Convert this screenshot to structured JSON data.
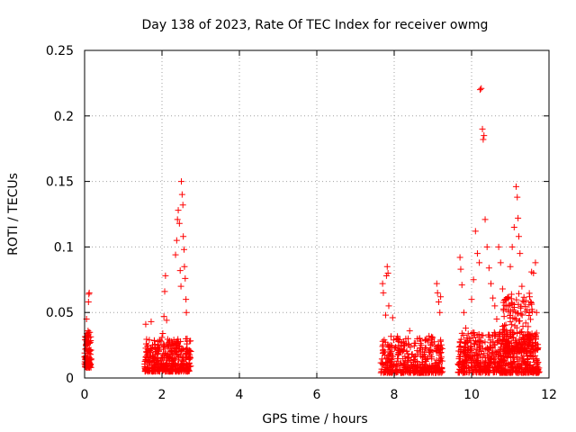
{
  "chart_data": {
    "type": "scatter",
    "title": "Day 138 of 2023, Rate Of TEC Index for receiver owmg",
    "xlabel": "GPS time / hours",
    "ylabel": "ROTI / TECUs",
    "xlim": [
      0,
      12
    ],
    "ylim": [
      0,
      0.25
    ],
    "x_ticks": [
      "0",
      "2",
      "4",
      "6",
      "8",
      "10",
      "12"
    ],
    "y_ticks": [
      "0",
      "0.05",
      "0.1",
      "0.15",
      "0.2",
      "0.25"
    ],
    "grid": true,
    "marker": "plus",
    "color": "#ff0000",
    "series": [
      {
        "points": [
          [
            0.0,
            0.016
          ],
          [
            0.02,
            0.022
          ],
          [
            0.03,
            0.031
          ],
          [
            0.04,
            0.012
          ],
          [
            0.05,
            0.045
          ],
          [
            0.06,
            0.027
          ],
          [
            0.07,
            0.01
          ],
          [
            0.08,
            0.019
          ],
          [
            0.09,
            0.036
          ],
          [
            0.1,
            0.058
          ],
          [
            0.11,
            0.064
          ],
          [
            0.12,
            0.065
          ],
          [
            0.13,
            0.014
          ],
          [
            0.14,
            0.021
          ],
          [
            1.58,
            0.041
          ],
          [
            1.62,
            0.012
          ],
          [
            1.68,
            0.008
          ],
          [
            1.72,
            0.043
          ],
          [
            1.78,
            0.015
          ],
          [
            1.82,
            0.01
          ],
          [
            1.88,
            0.018
          ],
          [
            1.92,
            0.022
          ],
          [
            1.96,
            0.013
          ],
          [
            2.0,
            0.031
          ],
          [
            2.02,
            0.034
          ],
          [
            2.05,
            0.047
          ],
          [
            2.07,
            0.066
          ],
          [
            2.09,
            0.078
          ],
          [
            2.12,
            0.044
          ],
          [
            2.15,
            0.024
          ],
          [
            2.2,
            0.016
          ],
          [
            2.25,
            0.028
          ],
          [
            2.3,
            0.019
          ],
          [
            2.35,
            0.094
          ],
          [
            2.38,
            0.105
          ],
          [
            2.4,
            0.121
          ],
          [
            2.42,
            0.128
          ],
          [
            2.45,
            0.118
          ],
          [
            2.47,
            0.082
          ],
          [
            2.49,
            0.07
          ],
          [
            2.5,
            0.15
          ],
          [
            2.52,
            0.14
          ],
          [
            2.54,
            0.132
          ],
          [
            2.55,
            0.108
          ],
          [
            2.57,
            0.098
          ],
          [
            2.58,
            0.085
          ],
          [
            2.6,
            0.076
          ],
          [
            2.62,
            0.06
          ],
          [
            2.63,
            0.05
          ],
          [
            2.65,
            0.03
          ],
          [
            2.68,
            0.018
          ],
          [
            2.7,
            0.014
          ],
          [
            7.7,
            0.072
          ],
          [
            7.72,
            0.065
          ],
          [
            7.74,
            0.01
          ],
          [
            7.76,
            0.02
          ],
          [
            7.78,
            0.048
          ],
          [
            7.8,
            0.078
          ],
          [
            7.82,
            0.085
          ],
          [
            7.84,
            0.08
          ],
          [
            7.86,
            0.055
          ],
          [
            7.88,
            0.012
          ],
          [
            7.92,
            0.015
          ],
          [
            7.96,
            0.046
          ],
          [
            8.0,
            0.01
          ],
          [
            8.1,
            0.018
          ],
          [
            8.2,
            0.022
          ],
          [
            8.3,
            0.03
          ],
          [
            8.4,
            0.036
          ],
          [
            8.5,
            0.012
          ],
          [
            8.6,
            0.018
          ],
          [
            8.7,
            0.025
          ],
          [
            8.8,
            0.014
          ],
          [
            8.9,
            0.032
          ],
          [
            9.0,
            0.02
          ],
          [
            9.05,
            0.024
          ],
          [
            9.1,
            0.072
          ],
          [
            9.12,
            0.065
          ],
          [
            9.15,
            0.058
          ],
          [
            9.18,
            0.05
          ],
          [
            9.2,
            0.062
          ],
          [
            9.22,
            0.016
          ],
          [
            9.7,
            0.092
          ],
          [
            9.72,
            0.083
          ],
          [
            9.75,
            0.071
          ],
          [
            9.8,
            0.05
          ],
          [
            9.85,
            0.038
          ],
          [
            9.9,
            0.021
          ],
          [
            9.95,
            0.015
          ],
          [
            10.0,
            0.06
          ],
          [
            10.05,
            0.075
          ],
          [
            10.1,
            0.112
          ],
          [
            10.15,
            0.095
          ],
          [
            10.2,
            0.088
          ],
          [
            10.22,
            0.22
          ],
          [
            10.25,
            0.221
          ],
          [
            10.28,
            0.19
          ],
          [
            10.3,
            0.182
          ],
          [
            10.32,
            0.185
          ],
          [
            10.35,
            0.121
          ],
          [
            10.4,
            0.1
          ],
          [
            10.45,
            0.084
          ],
          [
            10.5,
            0.072
          ],
          [
            10.55,
            0.061
          ],
          [
            10.6,
            0.055
          ],
          [
            10.65,
            0.045
          ],
          [
            10.7,
            0.1
          ],
          [
            10.75,
            0.088
          ],
          [
            10.8,
            0.068
          ],
          [
            10.85,
            0.04
          ],
          [
            10.9,
            0.03
          ],
          [
            10.95,
            0.052
          ],
          [
            11.0,
            0.085
          ],
          [
            11.05,
            0.1
          ],
          [
            11.1,
            0.115
          ],
          [
            11.15,
            0.146
          ],
          [
            11.18,
            0.138
          ],
          [
            11.2,
            0.122
          ],
          [
            11.22,
            0.108
          ],
          [
            11.25,
            0.095
          ],
          [
            11.3,
            0.07
          ],
          [
            11.35,
            0.058
          ],
          [
            11.4,
            0.042
          ],
          [
            11.45,
            0.035
          ],
          [
            11.5,
            0.062
          ],
          [
            11.55,
            0.081
          ],
          [
            11.6,
            0.08
          ],
          [
            11.65,
            0.088
          ],
          [
            11.68,
            0.05
          ]
        ]
      }
    ],
    "dense_bands": [
      {
        "x": [
          0.0,
          0.17
        ],
        "y": [
          0.008,
          0.035
        ],
        "count": 110
      },
      {
        "x": [
          1.55,
          2.75
        ],
        "y": [
          0.005,
          0.03
        ],
        "count": 380
      },
      {
        "x": [
          7.65,
          9.25
        ],
        "y": [
          0.004,
          0.032
        ],
        "count": 380
      },
      {
        "x": [
          9.65,
          11.75
        ],
        "y": [
          0.004,
          0.035
        ],
        "count": 620
      },
      {
        "x": [
          10.8,
          11.6
        ],
        "y": [
          0.02,
          0.065
        ],
        "count": 160
      }
    ]
  }
}
